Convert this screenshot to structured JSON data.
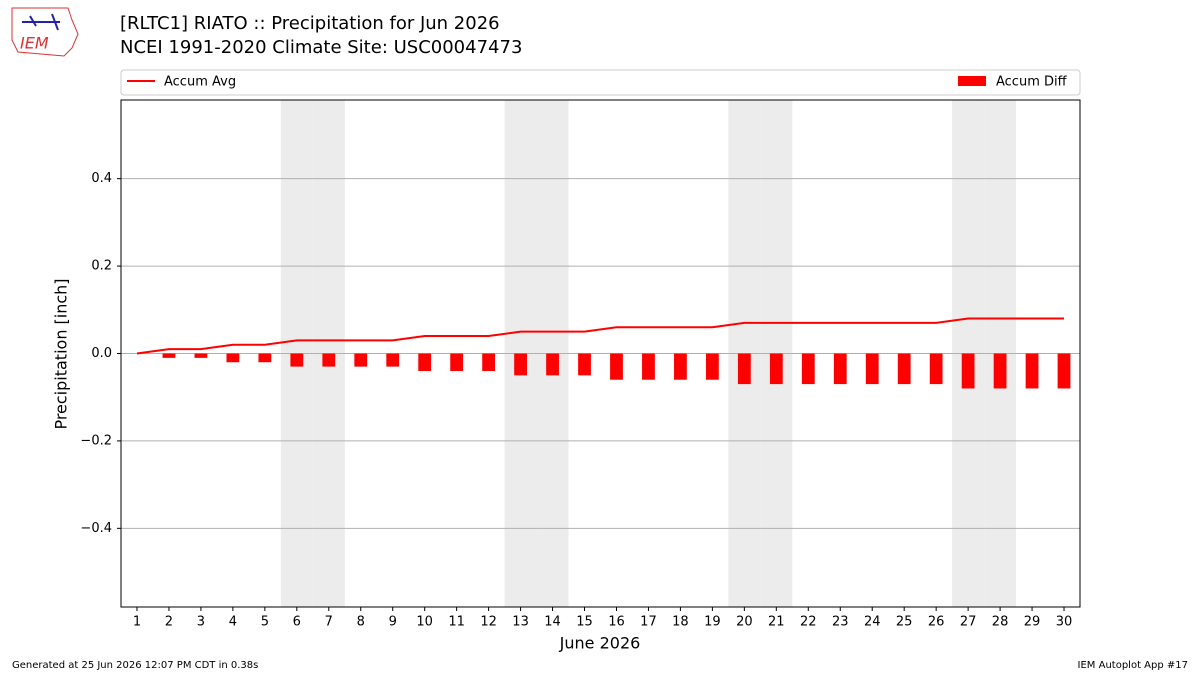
{
  "chart_data": {
    "type": "bar",
    "title": "[RLTC1] RIATO :: Precipitation for Jun 2026",
    "subtitle": "NCEI 1991-2020 Climate Site: USC00047473",
    "logo_text": "IEM",
    "y_label": "Precipitation [inch]",
    "x_label": "June 2026",
    "footer_left": "Generated at 25 Jun 2026 12:07 PM CDT in 0.38s",
    "footer_right": "IEM Autoplot App #17",
    "x": [
      1,
      2,
      3,
      4,
      5,
      6,
      7,
      8,
      9,
      10,
      11,
      12,
      13,
      14,
      15,
      16,
      17,
      18,
      19,
      20,
      21,
      22,
      23,
      24,
      25,
      26,
      27,
      28,
      29,
      30
    ],
    "xlim": [
      0.5,
      30.5
    ],
    "xticks": [
      1,
      2,
      3,
      4,
      5,
      6,
      7,
      8,
      9,
      10,
      11,
      12,
      13,
      14,
      15,
      16,
      17,
      18,
      19,
      20,
      21,
      22,
      23,
      24,
      25,
      26,
      27,
      28,
      29,
      30
    ],
    "ylim": [
      -0.58,
      0.58
    ],
    "yticks": [
      {
        "value": -0.4,
        "label": "−0.4"
      },
      {
        "value": -0.2,
        "label": "−0.2"
      },
      {
        "value": 0,
        "label": "0.0"
      },
      0.2,
      0.4
    ],
    "grid": true,
    "shaded_days": [
      6,
      7,
      13,
      14,
      20,
      21,
      27,
      28
    ],
    "series": [
      {
        "name": "Accum Avg",
        "type": "line",
        "color": "#ff0000",
        "values": [
          0,
          0.01,
          0.01,
          0.02,
          0.02,
          0.03,
          0.03,
          0.03,
          0.03,
          0.04,
          0.04,
          0.04,
          0.05,
          0.05,
          0.05,
          0.06,
          0.06,
          0.06,
          0.06,
          0.07,
          0.07,
          0.07,
          0.07,
          0.07,
          0.07,
          0.07,
          0.08,
          0.08,
          0.08,
          0.08
        ]
      },
      {
        "name": "Accum Diff",
        "type": "bar",
        "color": "#ff0000",
        "values": [
          0,
          -0.01,
          -0.01,
          -0.02,
          -0.02,
          -0.03,
          -0.03,
          -0.03,
          -0.03,
          -0.04,
          -0.04,
          -0.04,
          -0.05,
          -0.05,
          -0.05,
          -0.06,
          -0.06,
          -0.06,
          -0.06,
          -0.07,
          -0.07,
          -0.07,
          -0.07,
          -0.07,
          -0.07,
          -0.07,
          -0.08,
          -0.08,
          -0.08,
          -0.08
        ]
      }
    ]
  }
}
